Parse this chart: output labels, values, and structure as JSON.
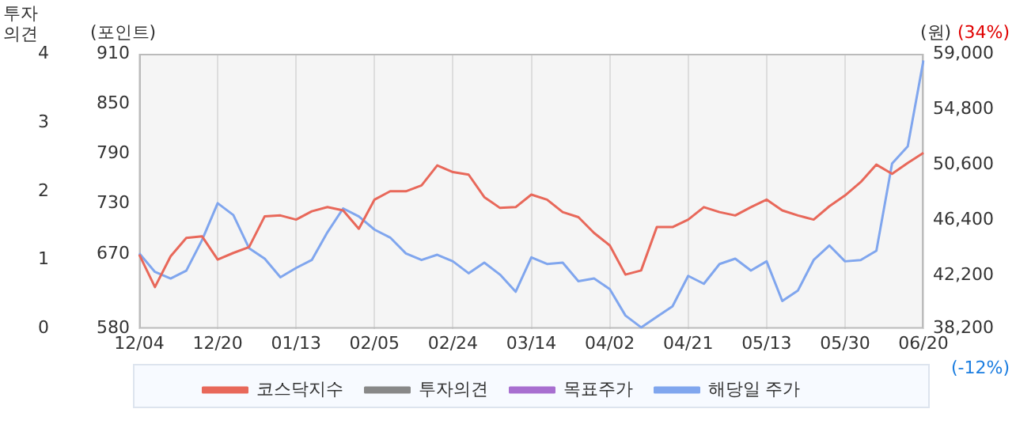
{
  "chart_data": {
    "type": "line",
    "ylabel": "(포인트)",
    "y2label": "(원)",
    "y3label": "투자\n의견",
    "annotations": [
      "(34%)",
      "(-12%)"
    ],
    "categories": [
      "12/04",
      null,
      null,
      null,
      null,
      "12/20",
      null,
      null,
      null,
      null,
      "01/13",
      null,
      null,
      null,
      null,
      "02/05",
      null,
      null,
      null,
      null,
      "02/24",
      null,
      null,
      null,
      null,
      "03/14",
      null,
      null,
      null,
      null,
      "04/02",
      null,
      null,
      null,
      null,
      "04/21",
      null,
      null,
      null,
      null,
      "05/13",
      null,
      null,
      null,
      null,
      "05/30",
      null,
      null,
      null,
      null,
      "06/20"
    ],
    "ylim": [
      580,
      910
    ],
    "yticks": [
      580,
      670,
      730,
      790,
      850,
      910
    ],
    "y2lim": [
      38200,
      59000
    ],
    "y2ticks": [
      {
        "value": 38200,
        "label": "38,200"
      },
      {
        "value": 42200,
        "label": "42,200"
      },
      {
        "value": 46400,
        "label": "46,400"
      },
      {
        "value": 50600,
        "label": "50,600"
      },
      {
        "value": 54800,
        "label": "54,800"
      },
      {
        "value": 59000,
        "label": "59,000"
      }
    ],
    "y3lim": [
      0,
      4
    ],
    "y3ticks": [
      0,
      1,
      2,
      3,
      4
    ],
    "grid": "x",
    "legend": "bottom",
    "marker": "none",
    "line_style": "solid",
    "series": [
      {
        "name": "코스닥지수",
        "color": "#e8685a",
        "values": [
          669,
          630,
          667,
          689,
          691,
          663,
          671,
          678,
          715,
          716,
          711,
          721,
          726,
          722,
          700,
          735,
          745,
          745,
          752,
          776,
          768,
          765,
          738,
          725,
          726,
          741,
          735,
          720,
          714,
          695,
          680,
          645,
          650,
          702,
          702,
          711,
          726,
          720,
          716,
          726,
          735,
          722,
          716,
          711,
          727,
          740,
          756,
          777,
          766,
          779,
          791
        ]
      },
      {
        "name": "투자의견",
        "color": "#888888",
        "axis": "y3",
        "values": [
          null,
          null,
          null,
          null,
          null,
          null,
          null,
          null,
          null,
          null,
          null,
          null,
          null,
          null,
          null,
          null,
          null,
          null,
          null,
          null,
          null,
          null,
          null,
          null,
          null,
          null,
          null,
          null,
          null,
          null,
          null,
          null,
          null,
          null,
          null,
          null,
          null,
          null,
          null,
          null,
          null,
          null,
          null,
          null,
          null,
          null,
          null,
          null,
          null,
          null,
          null
        ]
      },
      {
        "name": "목표주가",
        "color": "#a86fd0",
        "axis": "y2",
        "values": [
          null,
          null,
          null,
          null,
          null,
          null,
          null,
          null,
          null,
          null,
          null,
          null,
          null,
          null,
          null,
          null,
          null,
          null,
          null,
          null,
          null,
          null,
          null,
          null,
          null,
          null,
          null,
          null,
          null,
          null,
          null,
          null,
          null,
          null,
          null,
          null,
          null,
          null,
          null,
          null,
          null,
          null,
          null,
          null,
          null,
          null,
          null,
          null,
          null,
          null,
          null
        ]
      },
      {
        "name": "해당일 주가",
        "color": "#80a6ee",
        "axis": "y2",
        "values": [
          43900,
          42500,
          42000,
          42600,
          44900,
          47700,
          46800,
          44300,
          43500,
          42100,
          42800,
          43400,
          45500,
          47300,
          46700,
          45700,
          45100,
          43900,
          43400,
          43800,
          43300,
          42400,
          43200,
          42300,
          41000,
          43600,
          43100,
          43200,
          41800,
          42000,
          41200,
          39200,
          38300,
          39100,
          39900,
          42200,
          41600,
          43100,
          43500,
          42600,
          43300,
          40300,
          41100,
          43400,
          44500,
          43300,
          43400,
          44100,
          50700,
          52000,
          58500
        ]
      }
    ]
  }
}
